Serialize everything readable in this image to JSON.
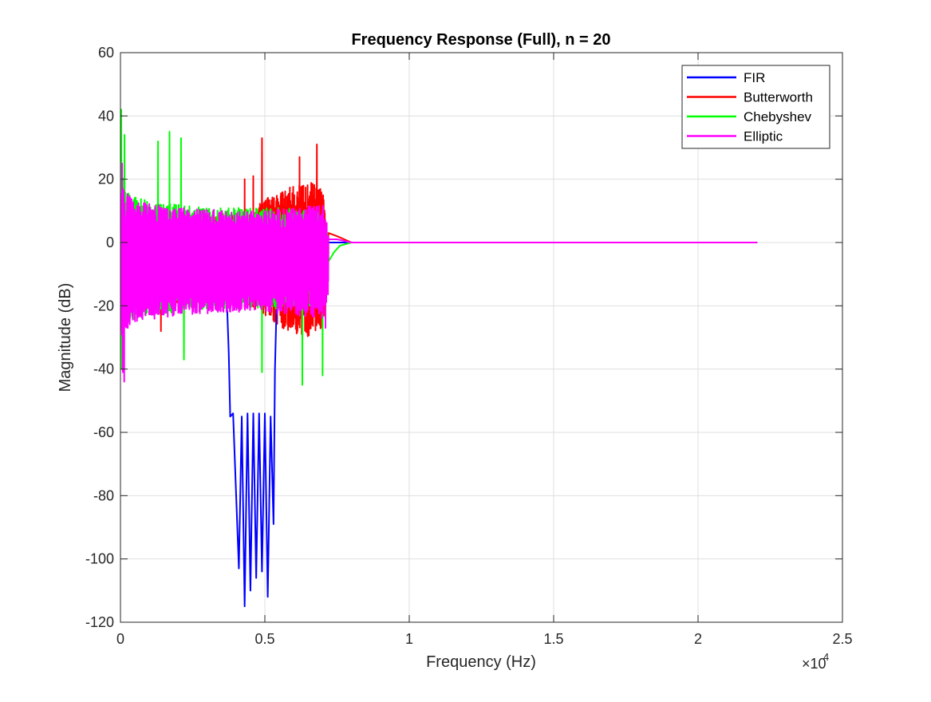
{
  "chart_data": {
    "type": "line",
    "title": "Frequency Response (Full), n = 20",
    "xlabel": "Frequency (Hz)",
    "ylabel": "Magnitude (dB)",
    "x_exponent_label": "×10",
    "x_exponent_power": "4",
    "x_scale": 10000,
    "xlim": [
      0,
      2.5
    ],
    "ylim": [
      -120,
      60
    ],
    "xticks": [
      0,
      0.5,
      1,
      1.5,
      2,
      2.5
    ],
    "xtick_labels": [
      "0",
      "0.5",
      "1",
      "1.5",
      "2",
      "2.5"
    ],
    "yticks": [
      -120,
      -100,
      -80,
      -60,
      -40,
      -20,
      0,
      20,
      40,
      60
    ],
    "ytick_labels": [
      "-120",
      "-100",
      "-80",
      "-60",
      "-40",
      "-20",
      "0",
      "20",
      "40",
      "60"
    ],
    "grid": true,
    "legend_position": "top-right",
    "series": [
      {
        "name": "FIR",
        "color": "#0000ff",
        "x": [
          0,
          0.35,
          0.37,
          0.375,
          0.38,
          0.39,
          0.41,
          0.42,
          0.43,
          0.44,
          0.45,
          0.46,
          0.47,
          0.48,
          0.49,
          0.5,
          0.51,
          0.52,
          0.53,
          0.535,
          0.54,
          0.55,
          0.6,
          0.7,
          0.8,
          2.205
        ],
        "y": [
          0,
          -5,
          -22,
          -35,
          -55,
          -54,
          -103,
          -55,
          -115,
          -54,
          -110,
          -54,
          -106,
          -54,
          -104,
          -54,
          -112,
          -55,
          -89,
          -40,
          -22,
          -5,
          0,
          0,
          0,
          0
        ]
      },
      {
        "name": "Butterworth",
        "color": "#ff0000",
        "noise": {
          "x_start": 0,
          "x_end": 0.72,
          "center_db": -5,
          "profile_x": [
            0,
            0.05,
            0.2,
            0.35,
            0.45,
            0.55,
            0.65,
            0.7,
            0.72
          ],
          "profile_amp": [
            22,
            16,
            14,
            14,
            15,
            22,
            25,
            22,
            6
          ],
          "spikes": [
            [
              0.46,
              21
            ],
            [
              0.49,
              33
            ],
            [
              0.62,
              27
            ],
            [
              0.68,
              31
            ],
            [
              0.43,
              20
            ],
            [
              0.14,
              -28
            ],
            [
              0.6,
              -25
            ]
          ]
        },
        "tail": {
          "x": [
            0.72,
            0.75,
            0.8,
            2.205
          ],
          "y": [
            3,
            2,
            0,
            0
          ]
        }
      },
      {
        "name": "Chebyshev",
        "color": "#00ff00",
        "noise": {
          "x_start": 0,
          "x_end": 0.72,
          "center_db": -5,
          "profile_x": [
            0,
            0.03,
            0.1,
            0.3,
            0.45,
            0.55,
            0.68,
            0.72
          ],
          "profile_amp": [
            28,
            20,
            18,
            16,
            16,
            16,
            15,
            8
          ],
          "spikes": [
            [
              0.003,
              42
            ],
            [
              0.17,
              35
            ],
            [
              0.13,
              32
            ],
            [
              0.21,
              33
            ],
            [
              0.014,
              34
            ],
            [
              0.49,
              -41
            ],
            [
              0.63,
              -45
            ],
            [
              0.7,
              -42
            ],
            [
              0.22,
              -37
            ],
            [
              0.005,
              -40
            ]
          ]
        },
        "tail": {
          "x": [
            0.72,
            0.74,
            0.76,
            0.8,
            2.205
          ],
          "y": [
            -6,
            -3,
            -1,
            0,
            0
          ]
        }
      },
      {
        "name": "Elliptic",
        "color": "#ff00ff",
        "noise": {
          "x_start": 0,
          "x_end": 0.72,
          "center_db": -6,
          "profile_x": [
            0,
            0.05,
            0.2,
            0.4,
            0.5,
            0.6,
            0.7,
            0.72
          ],
          "profile_amp": [
            24,
            19,
            17,
            16,
            16,
            17,
            18,
            10
          ],
          "spikes": [
            [
              0.013,
              -44
            ],
            [
              0.008,
              -41
            ],
            [
              0.006,
              25
            ],
            [
              0.71,
              -27
            ]
          ]
        },
        "tail": {
          "x": [
            0.72,
            0.75,
            0.8,
            2.205
          ],
          "y": [
            1,
            1,
            0,
            0
          ]
        }
      }
    ]
  }
}
